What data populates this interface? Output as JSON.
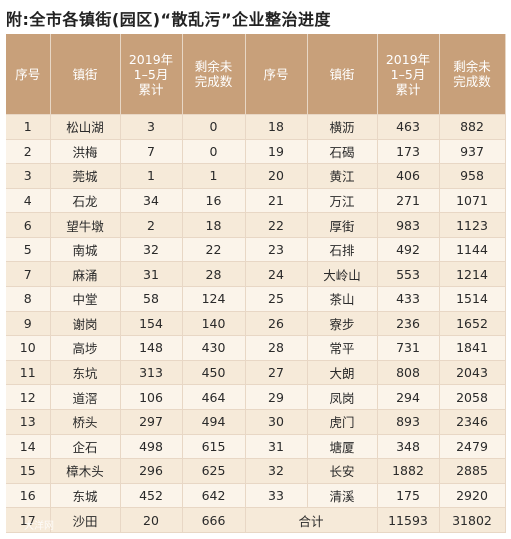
{
  "title": "附:全市各镇街(园区)“散乱污”企业整治进度",
  "headers": [
    "序号",
    "镇街",
    "2019年\n1–5月\n累计",
    "剩余未\n完成数",
    "序号",
    "镇街",
    "2019年\n1–5月\n累计",
    "剩余未\n完成数"
  ],
  "left_rows": [
    {
      "no": "1",
      "town": "松山湖",
      "cum": "3",
      "remain": "0"
    },
    {
      "no": "2",
      "town": "洪梅",
      "cum": "7",
      "remain": "0"
    },
    {
      "no": "3",
      "town": "莞城",
      "cum": "1",
      "remain": "1"
    },
    {
      "no": "4",
      "town": "石龙",
      "cum": "34",
      "remain": "16"
    },
    {
      "no": "6",
      "town": "望牛墩",
      "cum": "2",
      "remain": "18"
    },
    {
      "no": "5",
      "town": "南城",
      "cum": "32",
      "remain": "22"
    },
    {
      "no": "7",
      "town": "麻涌",
      "cum": "31",
      "remain": "28"
    },
    {
      "no": "8",
      "town": "中堂",
      "cum": "58",
      "remain": "124"
    },
    {
      "no": "9",
      "town": "谢岗",
      "cum": "154",
      "remain": "140"
    },
    {
      "no": "10",
      "town": "高埗",
      "cum": "148",
      "remain": "430"
    },
    {
      "no": "11",
      "town": "东坑",
      "cum": "313",
      "remain": "450"
    },
    {
      "no": "12",
      "town": "道滘",
      "cum": "106",
      "remain": "464"
    },
    {
      "no": "13",
      "town": "桥头",
      "cum": "297",
      "remain": "494"
    },
    {
      "no": "14",
      "town": "企石",
      "cum": "498",
      "remain": "615"
    },
    {
      "no": "15",
      "town": "樟木头",
      "cum": "296",
      "remain": "625"
    },
    {
      "no": "16",
      "town": "东城",
      "cum": "452",
      "remain": "642"
    },
    {
      "no": "17",
      "town": "沙田",
      "cum": "20",
      "remain": "666"
    }
  ],
  "right_rows": [
    {
      "no": "18",
      "town": "横沥",
      "cum": "463",
      "remain": "882"
    },
    {
      "no": "19",
      "town": "石碣",
      "cum": "173",
      "remain": "937"
    },
    {
      "no": "20",
      "town": "黄江",
      "cum": "406",
      "remain": "958"
    },
    {
      "no": "21",
      "town": "万江",
      "cum": "271",
      "remain": "1071"
    },
    {
      "no": "22",
      "town": "厚街",
      "cum": "983",
      "remain": "1123"
    },
    {
      "no": "23",
      "town": "石排",
      "cum": "492",
      "remain": "1144"
    },
    {
      "no": "24",
      "town": "大岭山",
      "cum": "553",
      "remain": "1214"
    },
    {
      "no": "25",
      "town": "茶山",
      "cum": "433",
      "remain": "1514"
    },
    {
      "no": "26",
      "town": "寮步",
      "cum": "236",
      "remain": "1652"
    },
    {
      "no": "28",
      "town": "常平",
      "cum": "731",
      "remain": "1841"
    },
    {
      "no": "27",
      "town": "大朗",
      "cum": "808",
      "remain": "2043"
    },
    {
      "no": "29",
      "town": "凤岗",
      "cum": "294",
      "remain": "2058"
    },
    {
      "no": "30",
      "town": "虎门",
      "cum": "893",
      "remain": "2346"
    },
    {
      "no": "31",
      "town": "塘厦",
      "cum": "348",
      "remain": "2479"
    },
    {
      "no": "32",
      "town": "长安",
      "cum": "1882",
      "remain": "2885"
    },
    {
      "no": "33",
      "town": "清溪",
      "cum": "175",
      "remain": "2920"
    }
  ],
  "total": {
    "label": "合计",
    "cum": "11593",
    "remain": "31802"
  },
  "watermark": "大洋网"
}
